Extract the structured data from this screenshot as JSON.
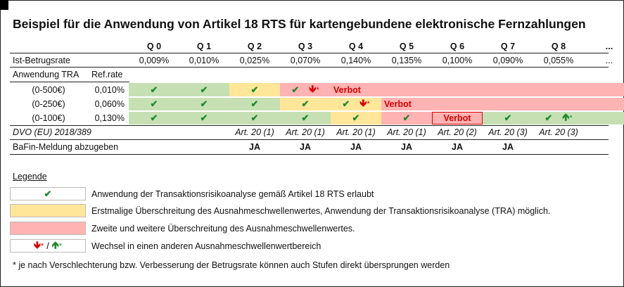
{
  "title": "Beispiel für die Anwendung von Artikel 18 RTS für kartengebundene elektronische Fernzahlungen",
  "columns": [
    "Q 0",
    "Q 1",
    "Q 2",
    "Q 3",
    "Q 4",
    "Q 5",
    "Q 6",
    "Q 7",
    "Q 8",
    "..."
  ],
  "ist_row": {
    "label": "Ist-Betrugsrate",
    "values": [
      "0,009%",
      "0,010%",
      "0,025%",
      "0,070%",
      "0,140%",
      "0,135%",
      "0,100%",
      "0,090%",
      "0,055%",
      "..."
    ]
  },
  "tra_header": {
    "label": "Anwendung TRA",
    "ref": "Ref.rate"
  },
  "tra_rows": [
    {
      "range": "(0-500€)",
      "ref": "0,010%"
    },
    {
      "range": "(0-250€)",
      "ref": "0,060%"
    },
    {
      "range": "(0-100€)",
      "ref": "0,130%"
    }
  ],
  "symbols": {
    "check": "✔",
    "down": "🡻",
    "up": "🡹",
    "star": "*",
    "verbot": "Verbot"
  },
  "dvo_row": {
    "label": "DVO (EU) 2018/389",
    "values": [
      "",
      "",
      "Art. 20 (1)",
      "Art. 20 (1)",
      "Art. 20 (1)",
      "Art. 20 (1)",
      "Art. 20 (2)",
      "Art. 20 (3)",
      "Art. 20 (3)",
      ""
    ]
  },
  "bafin_row": {
    "label": "BaFin-Meldung abzugeben",
    "values": [
      "",
      "",
      "JA",
      "JA",
      "JA",
      "JA",
      "JA",
      "JA",
      "",
      ""
    ]
  },
  "legend": {
    "title": "Legende",
    "items": [
      "Anwendung der Transaktionsrisikoanalyse gemäß Artikel 18 RTS erlaubt",
      "Erstmalige Überschreitung des Ausnahmeschwellenwertes, Anwendung der Transaktionsrisikoanalyse (TRA) möglich.",
      "Zweite und weitere Überschreitung des Ausnahmeschwellenwertes.",
      "Wechsel in einen anderen Ausnahmeschwellenwertbereich"
    ],
    "slash": "/"
  },
  "footnote": "* je nach Verschlechterung bzw. Verbesserung der Betrugsrate können auch Stufen direkt übersprungen werden",
  "colors": {
    "green": "#c6e0b4",
    "yellow": "#ffe699",
    "red": "#ffb3b3",
    "verbot": "#d40000"
  }
}
